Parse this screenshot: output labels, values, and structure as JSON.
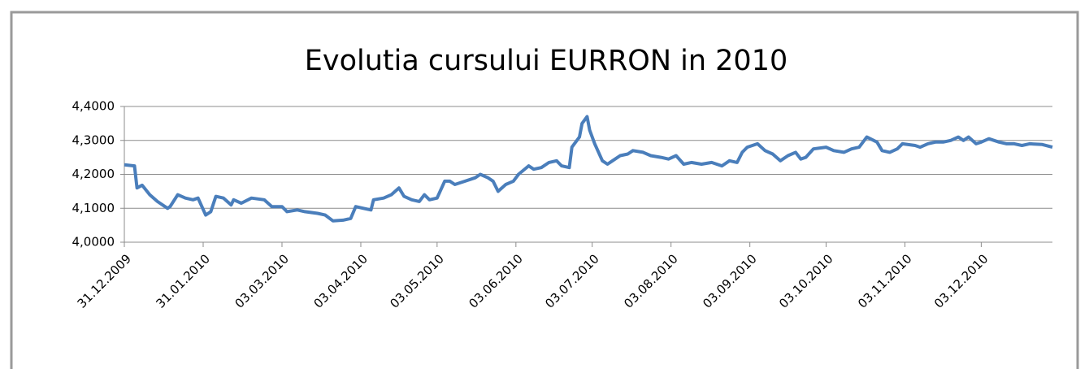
{
  "chart_data": {
    "type": "line",
    "title": "Evolutia cursului EURRON in 2010",
    "x": [
      "31.12.2009",
      "04.01.2010",
      "05.01.2010",
      "07.01.2010",
      "10.01.2010",
      "13.01.2010",
      "17.01.2010",
      "18.01.2010",
      "21.01.2010",
      "24.01.2010",
      "27.01.2010",
      "29.01.2010",
      "01.02.2010",
      "03.02.2010",
      "05.02.2010",
      "08.02.2010",
      "11.02.2010",
      "12.02.2010",
      "15.02.2010",
      "19.02.2010",
      "24.02.2010",
      "27.02.2010",
      "03.03.2010",
      "05.03.2010",
      "09.03.2010",
      "12.03.2010",
      "17.03.2010",
      "20.03.2010",
      "23.03.2010",
      "27.03.2010",
      "30.03.2010",
      "01.04.2010",
      "04.04.2010",
      "07.04.2010",
      "08.04.2010",
      "12.04.2010",
      "15.04.2010",
      "18.04.2010",
      "20.04.2010",
      "23.04.2010",
      "26.04.2010",
      "28.04.2010",
      "30.04.2010",
      "03.05.2010",
      "06.05.2010",
      "08.05.2010",
      "10.05.2010",
      "14.05.2010",
      "18.05.2010",
      "20.05.2010",
      "23.05.2010",
      "25.05.2010",
      "27.05.2010",
      "30.05.2010",
      "02.06.2010",
      "04.06.2010",
      "08.06.2010",
      "10.06.2010",
      "13.06.2010",
      "16.06.2010",
      "19.06.2010",
      "21.06.2010",
      "24.06.2010",
      "25.06.2010",
      "28.06.2010",
      "29.06.2010",
      "01.07.2010",
      "02.07.2010",
      "04.07.2010",
      "07.07.2010",
      "09.07.2010",
      "11.07.2010",
      "14.07.2010",
      "17.07.2010",
      "19.07.2010",
      "23.07.2010",
      "26.07.2010",
      "30.07.2010",
      "02.08.2010",
      "05.08.2010",
      "08.08.2010",
      "11.08.2010",
      "15.08.2010",
      "19.08.2010",
      "23.08.2010",
      "26.08.2010",
      "29.08.2010",
      "31.08.2010",
      "02.09.2010",
      "06.09.2010",
      "09.09.2010",
      "12.09.2010",
      "15.09.2010",
      "18.09.2010",
      "21.09.2010",
      "23.09.2010",
      "25.09.2010",
      "28.09.2010",
      "03.10.2010",
      "06.10.2010",
      "10.10.2010",
      "13.10.2010",
      "16.10.2010",
      "19.10.2010",
      "23.10.2010",
      "25.10.2010",
      "28.10.2010",
      "31.10.2010",
      "02.11.2010",
      "07.11.2010",
      "09.11.2010",
      "12.11.2010",
      "15.11.2010",
      "18.11.2010",
      "21.11.2010",
      "24.11.2010",
      "26.11.2010",
      "28.11.2010",
      "01.12.2010",
      "03.12.2010",
      "06.12.2010",
      "10.12.2010",
      "13.12.2010",
      "16.12.2010",
      "19.12.2010",
      "22.12.2010",
      "27.12.2010",
      "31.12.2010"
    ],
    "series": [
      {
        "color": "#4a7ebb",
        "values": [
          4.228,
          4.225,
          4.16,
          4.168,
          4.14,
          4.12,
          4.1,
          4.105,
          4.14,
          4.13,
          4.125,
          4.13,
          4.08,
          4.09,
          4.135,
          4.13,
          4.11,
          4.125,
          4.115,
          4.13,
          4.125,
          4.105,
          4.105,
          4.09,
          4.095,
          4.09,
          4.085,
          4.08,
          4.063,
          4.065,
          4.07,
          4.105,
          4.1,
          4.095,
          4.125,
          4.13,
          4.14,
          4.16,
          4.135,
          4.125,
          4.12,
          4.14,
          4.125,
          4.13,
          4.18,
          4.18,
          4.17,
          4.18,
          4.19,
          4.2,
          4.19,
          4.18,
          4.15,
          4.17,
          4.18,
          4.2,
          4.225,
          4.215,
          4.22,
          4.235,
          4.24,
          4.225,
          4.22,
          4.28,
          4.31,
          4.35,
          4.37,
          4.33,
          4.29,
          4.24,
          4.23,
          4.24,
          4.255,
          4.26,
          4.27,
          4.265,
          4.255,
          4.25,
          4.245,
          4.255,
          4.23,
          4.235,
          4.23,
          4.235,
          4.225,
          4.24,
          4.235,
          4.265,
          4.28,
          4.29,
          4.27,
          4.26,
          4.24,
          4.255,
          4.265,
          4.245,
          4.25,
          4.275,
          4.28,
          4.27,
          4.265,
          4.275,
          4.28,
          4.31,
          4.295,
          4.27,
          4.265,
          4.275,
          4.29,
          4.285,
          4.28,
          4.29,
          4.295,
          4.295,
          4.3,
          4.31,
          4.3,
          4.31,
          4.29,
          4.295,
          4.305,
          4.295,
          4.29,
          4.29,
          4.285,
          4.29,
          4.288,
          4.28
        ]
      }
    ],
    "xlim": [
      "31.12.2009",
      "31.12.2010"
    ],
    "xticks": [
      "31.12.2009",
      "31.01.2010",
      "03.03.2010",
      "03.04.2010",
      "03.05.2010",
      "03.06.2010",
      "03.07.2010",
      "03.08.2010",
      "03.09.2010",
      "03.10.2010",
      "03.11.2010",
      "03.12.2010"
    ],
    "ylim": [
      4.0,
      4.4
    ],
    "yticks": [
      {
        "value": 4.0,
        "label": "4,0000"
      },
      {
        "value": 4.1,
        "label": "4,1000"
      },
      {
        "value": 4.2,
        "label": "4,2000"
      },
      {
        "value": 4.3,
        "label": "4,3000"
      },
      {
        "value": 4.4,
        "label": "4,4000"
      }
    ],
    "grid": true
  }
}
